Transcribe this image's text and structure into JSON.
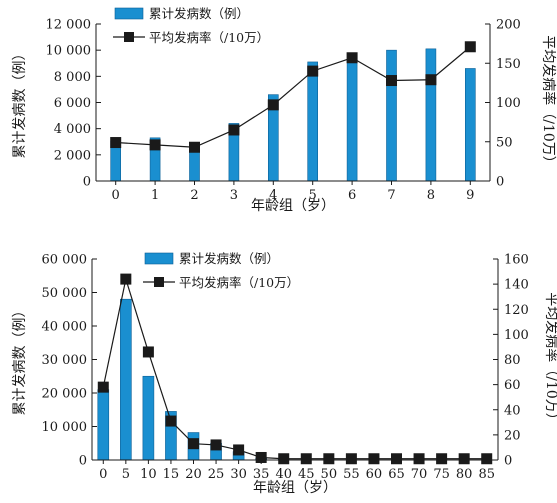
{
  "colors": {
    "bar": "#1a8fd0",
    "bar_edge": "#0b5f96",
    "line": "#1a1a1a",
    "axis": "#1a1a1a"
  },
  "chart_data": [
    {
      "type": "bar+line",
      "categories": [
        "0",
        "1",
        "2",
        "3",
        "4",
        "5",
        "6",
        "7",
        "8",
        "9"
      ],
      "series": [
        {
          "name": "累计发病数（例）",
          "kind": "bar",
          "axis": "left",
          "values": [
            3050,
            3300,
            2600,
            4400,
            6600,
            9100,
            9200,
            10000,
            10100,
            8600
          ]
        },
        {
          "name": "平均发病率（/10万）",
          "kind": "line",
          "axis": "right",
          "values": [
            49,
            46,
            43,
            65,
            97,
            140,
            157,
            128,
            129,
            171
          ]
        }
      ],
      "xlabel": "年龄组（岁）",
      "ylabel_left": "累计发病数（例）",
      "ylabel_right": "平均发病率（/10万）",
      "ylim_left": [
        0,
        12000
      ],
      "ylim_right": [
        0,
        200
      ],
      "yticks_left": [
        0,
        2000,
        4000,
        6000,
        8000,
        10000,
        12000
      ],
      "ytick_labels_left": [
        "0",
        "2 000",
        "4 000",
        "6 000",
        "8 000",
        "10 000",
        "12 000"
      ],
      "yticks_right": [
        0,
        50,
        100,
        150,
        200
      ],
      "ytick_labels_right": [
        "0",
        "50",
        "100",
        "150",
        "200"
      ],
      "grid": false,
      "legend": "top-left"
    },
    {
      "type": "bar+line",
      "categories": [
        "0",
        "5",
        "10",
        "15",
        "20",
        "25",
        "30",
        "35",
        "40",
        "45",
        "50",
        "55",
        "60",
        "65",
        "70",
        "75",
        "80",
        "85"
      ],
      "series": [
        {
          "name": "累计发病数（例）",
          "kind": "bar",
          "axis": "left",
          "values": [
            21000,
            48000,
            25000,
            14500,
            8200,
            5000,
            2500,
            600,
            200,
            100,
            80,
            60,
            50,
            40,
            30,
            25,
            20,
            15
          ]
        },
        {
          "name": "平均发病率（/10万）",
          "kind": "line",
          "axis": "right",
          "values": [
            58,
            144,
            86,
            31,
            13,
            12,
            8,
            2,
            1,
            1,
            1,
            1,
            1,
            1,
            1,
            1,
            1,
            1
          ]
        }
      ],
      "xlabel": "年龄组（岁）",
      "ylabel_left": "累计发病数（例）",
      "ylabel_right": "平均发病率（/10万）",
      "ylim_left": [
        0,
        60000
      ],
      "ylim_right": [
        0,
        160
      ],
      "yticks_left": [
        0,
        10000,
        20000,
        30000,
        40000,
        50000,
        60000
      ],
      "ytick_labels_left": [
        "0",
        "10 000",
        "20 000",
        "30 000",
        "40 000",
        "50 000",
        "60 000"
      ],
      "yticks_right": [
        0,
        20,
        40,
        60,
        80,
        100,
        120,
        140,
        160
      ],
      "ytick_labels_right": [
        "0",
        "20",
        "40",
        "60",
        "80",
        "100",
        "120",
        "140",
        "160"
      ],
      "grid": false,
      "legend": "top-right"
    }
  ]
}
